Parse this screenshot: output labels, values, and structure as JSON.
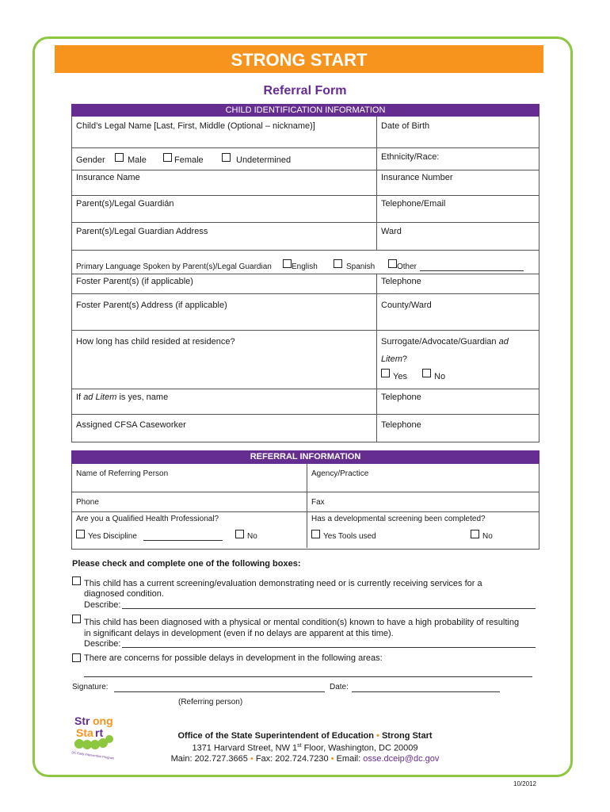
{
  "header": {
    "title": "STRONG START",
    "subtitle": "Referral Form"
  },
  "child_section": {
    "heading": "CHILD IDENTIFICATION INFORMATION",
    "legal_name": "Child’s Legal Name [Last, First, Middle (Optional – nickname)]",
    "dob": "Date of Birth",
    "gender": "Gender",
    "male": "Male",
    "female": "Female",
    "undetermined": "Undetermined",
    "ethnicity": "Ethnicity/Race:",
    "insurance_name": "Insurance Name",
    "insurance_number": "Insurance Number",
    "guardian": "Parent(s)/Legal Guardián",
    "telephone_email": "Telephone/Email",
    "guardian_address": "Parent(s)/Legal Guardian Address",
    "ward": "Ward",
    "language": "Primary Language Spoken by Parent(s)/Legal Guardian",
    "english": "English",
    "spanish": "Spanish",
    "other": "Other",
    "foster": "Foster Parent(s) (if applicable)",
    "telephone": "Telephone",
    "foster_address": "Foster Parent(s) Address (if applicable)",
    "county_ward": "County/Ward",
    "resided": "How long has child resided at residence?",
    "surrogate": "Surrogate/Advocate/Guardian",
    "ad": "ad",
    "litem": "Litem",
    "q": "?",
    "yes": "Yes",
    "no": "No",
    "adlitem_if": "If",
    "adlitem_it": "ad Litem",
    "adlitem_rest": " is yes, name",
    "cfsa": "Assigned CFSA Caseworker"
  },
  "referral_section": {
    "heading": "REFERRAL INFORMATION",
    "name": "Name of Referring Person",
    "agency": "Agency/Practice",
    "phone": "Phone",
    "fax": "Fax",
    "qhp": "Are you a Qualified Health Professional?",
    "screening": "Has a developmental screening been completed?",
    "yes_discipline": "Yes  Discipline",
    "no": "No",
    "yes_tools": "Yes  Tools used"
  },
  "boxes": {
    "instruction": "Please check and complete one of the following boxes:",
    "opt1a": "This child has a current screening/evaluation demonstrating need or is currently receiving services for a",
    "opt1b": "diagnosed condition.",
    "describe": "Describe:",
    "opt2a": "This child has been diagnosed with a physical or mental condition(s) known to have a high probability of resulting",
    "opt2b": "in significant delays in development (even if no delays are apparent at this time).",
    "opt3": "There are concerns for possible delays in development in the following areas:"
  },
  "signature": {
    "signature": "Signature:",
    "date": "Date:",
    "referring": "(Referring person)"
  },
  "footer": {
    "logo_text": "Strong Start DC Early Intervention Program",
    "office": "Office of the State Superintendent of Education",
    "program": "Strong Start",
    "address_pre": "1371 Harvard Street, NW 1",
    "address_sup": "st",
    "address_post": " Floor, Washington, DC 20009",
    "main": "Main: 202.727.3665",
    "fax": "Fax: 202.724.7230",
    "email_label": "Email: ",
    "email": "osse.dceip@dc.gov",
    "bullet": "•",
    "revision": "10/2012"
  },
  "colors": {
    "orange": "#f7941d",
    "purple": "#662d91",
    "green": "#8dc63f"
  }
}
